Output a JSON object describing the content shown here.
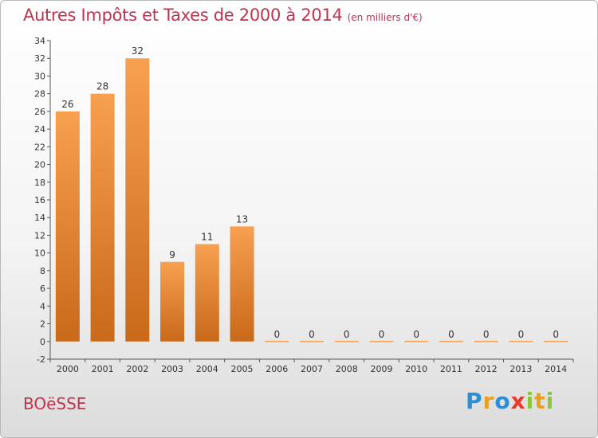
{
  "chart_data": {
    "type": "bar",
    "title": "Autres Impôts et Taxes de 2000 à 2014",
    "subtitle": "(en milliers d'€)",
    "categories": [
      "2000",
      "2001",
      "2002",
      "2003",
      "2004",
      "2005",
      "2006",
      "2007",
      "2008",
      "2009",
      "2010",
      "2011",
      "2012",
      "2013",
      "2014"
    ],
    "values": [
      26,
      28,
      32,
      9,
      11,
      13,
      0,
      0,
      0,
      0,
      0,
      0,
      0,
      0,
      0
    ],
    "data_labels": [
      "26",
      "28",
      "32",
      "9",
      "11",
      "13",
      "0",
      "0",
      "0",
      "0",
      "0",
      "0",
      "0",
      "0",
      "0"
    ],
    "ylim": [
      -2,
      34
    ],
    "yticks": [
      -2,
      0,
      2,
      4,
      6,
      8,
      10,
      12,
      14,
      16,
      18,
      20,
      22,
      24,
      26,
      28,
      30,
      32,
      34
    ],
    "xlabel": "",
    "ylabel": "",
    "grid": false,
    "legend": "none",
    "colors": {
      "bar_top": "#f7a050",
      "bar_bottom": "#c9691a",
      "accent": "#c0334f"
    }
  },
  "footer": {
    "town": "BOëSSE",
    "logo_letters": [
      "P",
      "r",
      "o",
      "x",
      "i",
      "t",
      "i"
    ],
    "logo_colors": [
      "#2a8fd6",
      "#e8a020",
      "#2a8fd6",
      "#e63a2e",
      "#8cc63f",
      "#e8a020",
      "#8cc63f"
    ]
  }
}
